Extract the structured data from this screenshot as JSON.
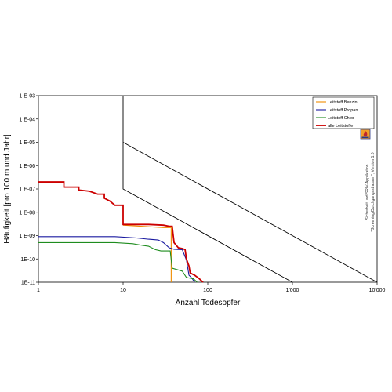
{
  "chart_data": {
    "type": "line",
    "x_scale": "log",
    "y_scale": "log",
    "xlabel": "Anzahl Todesopfer",
    "ylabel": "Häufigkeit [pro 100 m und Jahr]",
    "xlim": [
      1,
      10000
    ],
    "ylim": [
      1e-11,
      0.001
    ],
    "x_ticks": [
      {
        "value": 1,
        "label": "1"
      },
      {
        "value": 10,
        "label": "10"
      },
      {
        "value": 100,
        "label": "100"
      },
      {
        "value": 1000,
        "label": "1'000"
      },
      {
        "value": 10000,
        "label": "10'000"
      }
    ],
    "y_ticks": [
      {
        "value": 0.001,
        "label": "1 E-03"
      },
      {
        "value": 0.0001,
        "label": "1 E-04"
      },
      {
        "value": 1e-05,
        "label": "1 E-05"
      },
      {
        "value": 1e-06,
        "label": "1 E-06"
      },
      {
        "value": 1e-07,
        "label": "1 E-07"
      },
      {
        "value": 1e-08,
        "label": "1 E-08"
      },
      {
        "value": 1e-09,
        "label": "1 E-09"
      },
      {
        "value": 1e-10,
        "label": "1E-10"
      },
      {
        "value": 1e-11,
        "label": "1E-11"
      }
    ],
    "grid": false,
    "legend_position": "top-right",
    "series": [
      {
        "name": "Leitstoff Benzin",
        "color": "#f08c00",
        "points": [
          [
            10,
            2.8e-09
          ],
          [
            30,
            2.2e-09
          ],
          [
            37,
            2.2e-09
          ],
          [
            37,
            1e-11
          ]
        ]
      },
      {
        "name": "Leitstoff Propan",
        "color": "#1a1aa0",
        "points": [
          [
            1,
            9e-10
          ],
          [
            8,
            9e-10
          ],
          [
            14,
            8e-10
          ],
          [
            20,
            7e-10
          ],
          [
            26,
            6.5e-10
          ],
          [
            30,
            5e-10
          ],
          [
            35,
            3e-10
          ],
          [
            40,
            2.6e-10
          ],
          [
            50,
            2.5e-10
          ],
          [
            56,
            9e-11
          ],
          [
            60,
            2e-11
          ],
          [
            65,
            1.5e-11
          ],
          [
            70,
            1e-11
          ]
        ]
      },
      {
        "name": "Leitstoff Chlor",
        "color": "#1e8c1e",
        "points": [
          [
            1,
            5e-10
          ],
          [
            8,
            5e-10
          ],
          [
            13,
            4.5e-10
          ],
          [
            17,
            3.8e-10
          ],
          [
            20,
            3.5e-10
          ],
          [
            24,
            2.5e-10
          ],
          [
            28,
            2.2e-10
          ],
          [
            36,
            2.2e-10
          ],
          [
            38,
            4e-11
          ],
          [
            50,
            3e-11
          ],
          [
            56,
            1.6e-11
          ],
          [
            68,
            1.4e-11
          ],
          [
            75,
            1e-11
          ]
        ]
      },
      {
        "name": "alle Leitstoffe",
        "color": "#cc0000",
        "points": [
          [
            1,
            2e-07
          ],
          [
            2,
            2e-07
          ],
          [
            2,
            1.2e-07
          ],
          [
            3,
            1.2e-07
          ],
          [
            3,
            9e-08
          ],
          [
            4,
            8e-08
          ],
          [
            5,
            6e-08
          ],
          [
            6,
            6e-08
          ],
          [
            6,
            4e-08
          ],
          [
            7,
            3e-08
          ],
          [
            8,
            2e-08
          ],
          [
            10,
            2e-08
          ],
          [
            10,
            3e-09
          ],
          [
            20,
            3e-09
          ],
          [
            30,
            2.8e-09
          ],
          [
            35,
            2.5e-09
          ],
          [
            38,
            2.5e-09
          ],
          [
            40,
            5e-10
          ],
          [
            45,
            3e-10
          ],
          [
            50,
            2.8e-10
          ],
          [
            54,
            2.5e-10
          ],
          [
            56,
            1e-10
          ],
          [
            60,
            5e-11
          ],
          [
            62,
            2.5e-11
          ],
          [
            70,
            2e-11
          ],
          [
            78,
            1.5e-11
          ],
          [
            88,
            1e-11
          ]
        ]
      }
    ],
    "criteria_lines": [
      {
        "points": [
          [
            10,
            0.001
          ],
          [
            10,
            1e-07
          ],
          [
            1000,
            1e-11
          ]
        ]
      },
      {
        "points": [
          [
            10,
            1e-05
          ],
          [
            10000,
            1e-11
          ]
        ]
      }
    ],
    "legend_icon": "hazard-logo-icon",
    "side_note_lines": [
      "Sicherheit und SRIV-Applikation",
      "\"Screening Durchgangsstrassen\", Version 1.0"
    ]
  }
}
